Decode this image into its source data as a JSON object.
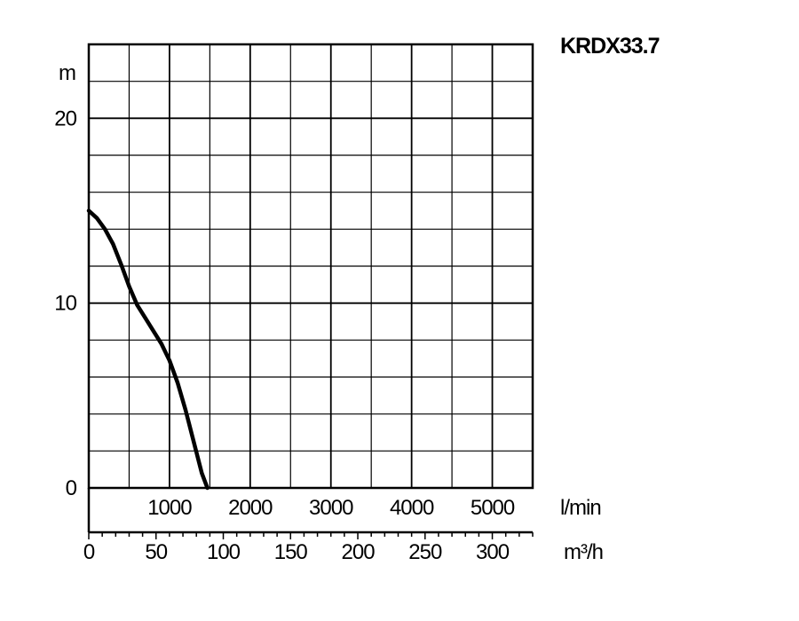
{
  "chart_data": {
    "type": "line",
    "title": "KRDX33.7",
    "ylabel": "m",
    "xlabel_primary": "l/min",
    "xlabel_secondary": "m³/h",
    "ylim": [
      0,
      24
    ],
    "xlim_lmin": [
      0,
      5500
    ],
    "xlim_m3h": [
      0,
      330
    ],
    "grid": true,
    "y_ticks": [
      0,
      10,
      20
    ],
    "y_tick_labels": [
      "0",
      "10",
      "20"
    ],
    "x_ticks_lmin": [
      1000,
      2000,
      3000,
      4000,
      5000
    ],
    "x_tick_labels_lmin": [
      "1000",
      "2000",
      "3000",
      "4000",
      "5000"
    ],
    "x_ticks_m3h": [
      0,
      50,
      100,
      150,
      200,
      250,
      300
    ],
    "x_tick_labels_m3h": [
      "0",
      "50",
      "100",
      "150",
      "200",
      "250",
      "300"
    ],
    "series": [
      {
        "color": "#000000",
        "x_lmin": [
          0,
          100,
          200,
          300,
          400,
          500,
          600,
          700,
          800,
          900,
          1000,
          1100,
          1200,
          1300,
          1400,
          1470
        ],
        "y_m": [
          15.0,
          14.6,
          14.0,
          13.2,
          12.1,
          10.9,
          9.9,
          9.2,
          8.5,
          7.8,
          6.9,
          5.7,
          4.2,
          2.5,
          0.8,
          0
        ]
      }
    ]
  }
}
